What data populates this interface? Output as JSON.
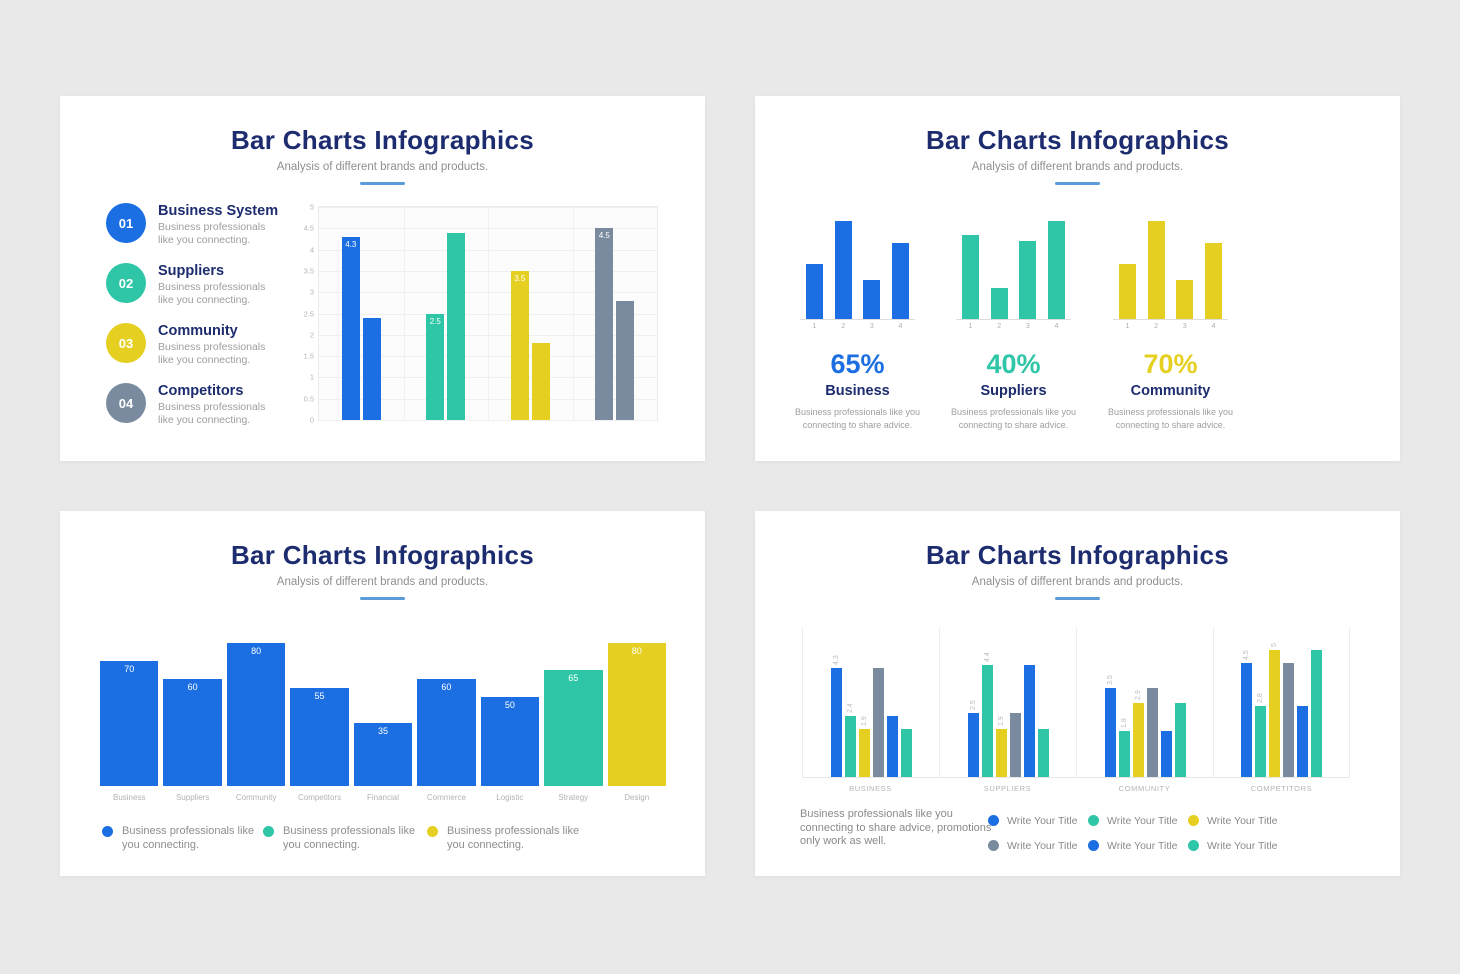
{
  "page_bg": "#E9E9E9",
  "palette": {
    "blue": "#1C6FE2",
    "teal": "#2EC6A6",
    "yellow": "#E5D021",
    "gray": "#7A8BA0",
    "navy": "#1D2C6E",
    "underline": "#5B9BD9"
  },
  "slides": [
    {
      "title": "Bar Charts Infographics",
      "subtitle": "Analysis of different brands and products.",
      "list": [
        {
          "num": "01",
          "color": "blue",
          "title": "Business System",
          "desc": "Business professionals like you connecting."
        },
        {
          "num": "02",
          "color": "teal",
          "title": "Suppliers",
          "desc": "Business professionals like you connecting."
        },
        {
          "num": "03",
          "color": "yellow",
          "title": "Community",
          "desc": "Business professionals like you connecting."
        },
        {
          "num": "04",
          "color": "gray",
          "title": "Competitors",
          "desc": "Business professionals like you connecting."
        }
      ]
    },
    {
      "title": "Bar Charts Infographics",
      "subtitle": "Analysis of different brands and products."
    },
    {
      "title": "Bar Charts Infographics",
      "subtitle": "Analysis of different brands and products.",
      "legend": [
        {
          "color": "blue",
          "text": "Business professionals like you connecting."
        },
        {
          "color": "teal",
          "text": "Business professionals like you connecting."
        },
        {
          "color": "yellow",
          "text": "Business professionals like you connecting."
        }
      ]
    },
    {
      "title": "Bar Charts Infographics",
      "subtitle": "Analysis of different brands and products.",
      "note": "Business professionals like you connecting to share advice, promotions only work as well.",
      "legend": [
        {
          "color": "blue",
          "text": "Write Your Title"
        },
        {
          "color": "teal",
          "text": "Write Your Title"
        },
        {
          "color": "yellow",
          "text": "Write Your Title"
        },
        {
          "color": "gray",
          "text": "Write Your Title"
        },
        {
          "color": "blue",
          "text": "Write Your Title"
        },
        {
          "color": "teal",
          "text": "Write Your Title"
        }
      ]
    }
  ],
  "chart_data": [
    {
      "type": "bar",
      "slide": 1,
      "title": "Bar Charts Infographics",
      "ylim": [
        0,
        5
      ],
      "yticks": [
        "5",
        "4.5",
        "4",
        "3.5",
        "3",
        "2.5",
        "2",
        "1.5",
        "1",
        "0.5",
        "0"
      ],
      "grid": true,
      "groups": [
        {
          "name": "Business System",
          "color": "blue",
          "values": [
            4.3,
            2.4
          ],
          "bar_labels": [
            "4.3",
            ""
          ]
        },
        {
          "name": "Suppliers",
          "color": "teal",
          "values": [
            2.5,
            4.4
          ],
          "bar_labels": [
            "2.5",
            ""
          ]
        },
        {
          "name": "Community",
          "color": "yellow",
          "values": [
            3.5,
            1.8
          ],
          "bar_labels": [
            "3.5",
            ""
          ]
        },
        {
          "name": "Competitors",
          "color": "gray",
          "values": [
            4.5,
            2.8
          ],
          "bar_labels": [
            "4.5",
            ""
          ]
        }
      ]
    },
    {
      "type": "bar",
      "slide": 2,
      "title": "Bar Charts Infographics",
      "ylim": [
        0,
        5
      ],
      "x": [
        "1",
        "2",
        "3",
        "4"
      ],
      "charts": [
        {
          "color": "blue",
          "values": [
            2.8,
            5.0,
            2.0,
            3.9
          ],
          "pct": "65%",
          "label": "Business",
          "desc": "Business professionals like you connecting to share advice."
        },
        {
          "color": "teal",
          "values": [
            4.3,
            1.6,
            4.0,
            5.0
          ],
          "pct": "40%",
          "label": "Suppliers",
          "desc": "Business professionals like you connecting to share advice."
        },
        {
          "color": "yellow",
          "values": [
            2.8,
            5.0,
            2.0,
            3.9
          ],
          "pct": "70%",
          "label": "Community",
          "desc": "Business professionals like you connecting to share advice."
        }
      ]
    },
    {
      "type": "bar",
      "slide": 3,
      "title": "Bar Charts Infographics",
      "ylim": [
        0,
        80
      ],
      "categories": [
        "Business",
        "Suppliers",
        "Community",
        "Competitors",
        "Financial",
        "Commerce",
        "Logistic",
        "Strategy",
        "Design"
      ],
      "values": [
        70,
        60,
        80,
        55,
        35,
        60,
        50,
        65,
        80
      ],
      "colors": [
        "blue",
        "blue",
        "blue",
        "blue",
        "blue",
        "blue",
        "blue",
        "teal",
        "yellow"
      ]
    },
    {
      "type": "bar",
      "slide": 4,
      "title": "Bar Charts Infographics",
      "ylim": [
        0,
        5.9
      ],
      "bar_color_sequence": [
        "blue",
        "teal",
        "yellow",
        "gray",
        "blue",
        "teal"
      ],
      "groups": [
        {
          "label": "BUSINESS",
          "values": [
            4.3,
            2.4,
            1.9,
            4.3,
            2.4,
            1.9
          ],
          "bar_labels": [
            "4.3",
            "2.4",
            "1.9",
            "",
            "",
            ""
          ]
        },
        {
          "label": "SUPPLIERS",
          "values": [
            2.5,
            4.4,
            1.9,
            2.5,
            4.4,
            1.9
          ],
          "bar_labels": [
            "2.5",
            "4.4",
            "1.9",
            "",
            "",
            ""
          ]
        },
        {
          "label": "COMMUNITY",
          "values": [
            3.5,
            1.8,
            2.9,
            3.5,
            1.8,
            2.9
          ],
          "bar_labels": [
            "3.5",
            "1.8",
            "2.9",
            "",
            "",
            ""
          ]
        },
        {
          "label": "COMPETITORS",
          "values": [
            4.5,
            2.8,
            5.0,
            4.5,
            2.8,
            5.0
          ],
          "bar_labels": [
            "4.5",
            "2.8",
            "5",
            "",
            "",
            ""
          ]
        }
      ]
    }
  ]
}
